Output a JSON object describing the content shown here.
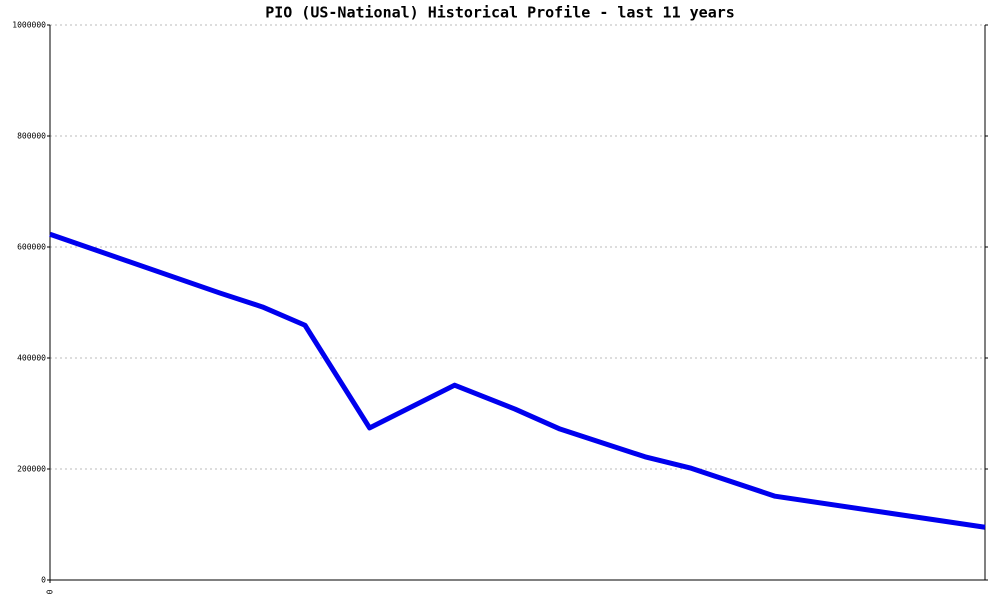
{
  "chart_data": {
    "type": "line",
    "title": "PIO (US-National) Historical Profile - last 11 years",
    "x": [
      0,
      2,
      2.5,
      3,
      3.76,
      4.76,
      5.47,
      6,
      7,
      7.53,
      8.53,
      11
    ],
    "series": [
      {
        "color": "#0000ee",
        "values": [
          623000,
          517000,
          492000,
          459000,
          274000,
          351000,
          308000,
          272000,
          222000,
          202000,
          151000,
          95000
        ]
      }
    ],
    "xlim": [
      0,
      11
    ],
    "xticks": [
      0
    ],
    "ylim": [
      0,
      1000000
    ],
    "yticks": [
      0,
      200000,
      400000,
      600000,
      800000,
      1000000
    ],
    "grid": true
  }
}
